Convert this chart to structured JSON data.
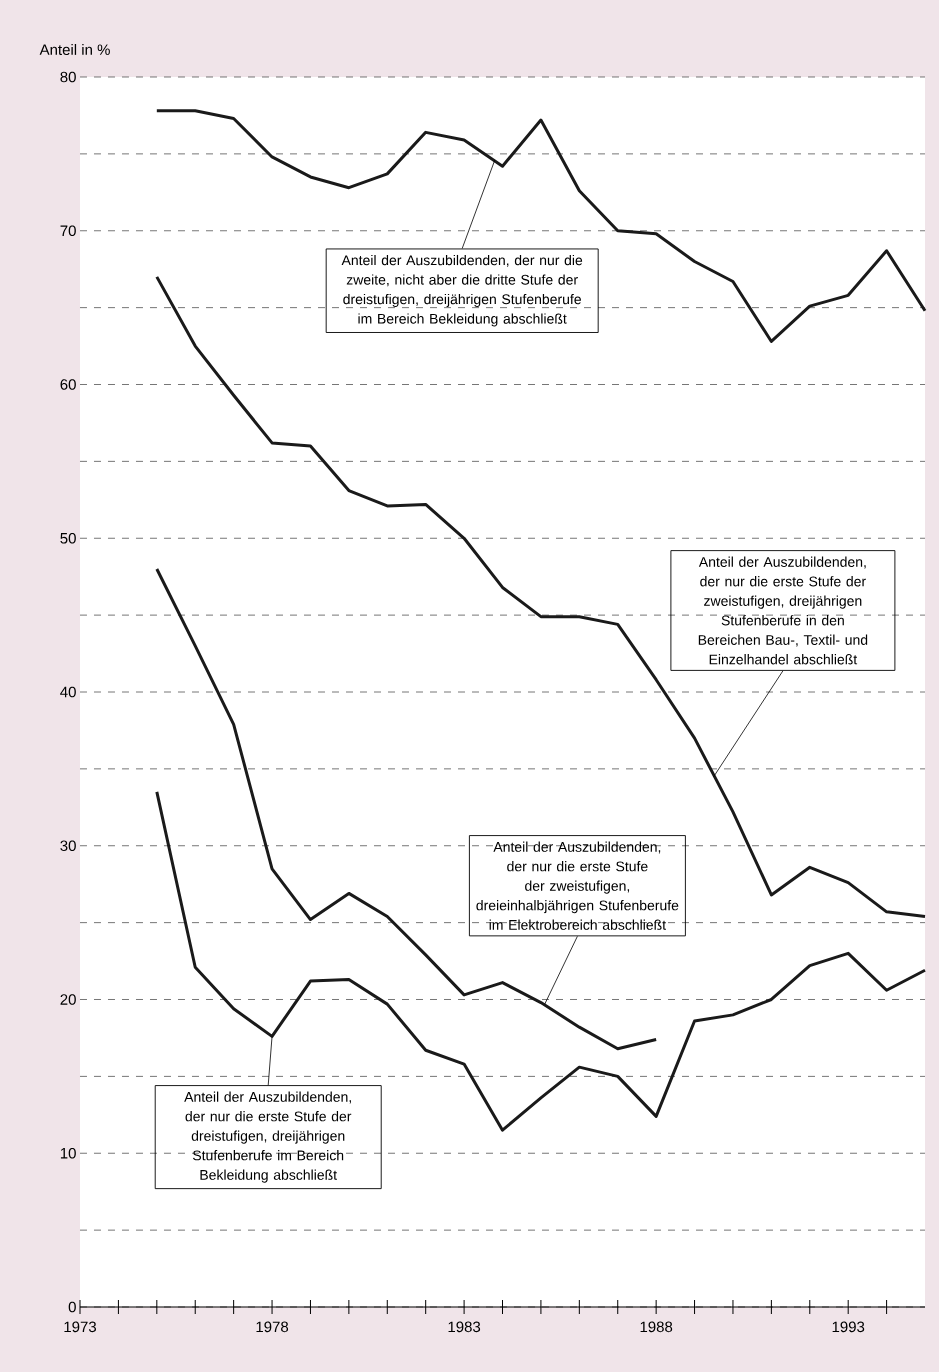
{
  "chart_data": {
    "type": "line",
    "ylabel": "Anteil in %",
    "xlim": [
      1973,
      1995
    ],
    "ylim": [
      0,
      80
    ],
    "xticks": [
      1973,
      {
        "value": 1974,
        "label": null
      },
      {
        "value": 1975,
        "label": null
      },
      {
        "value": 1976,
        "label": null
      },
      {
        "value": 1977,
        "label": null
      },
      1978,
      {
        "value": 1979,
        "label": null
      },
      {
        "value": 1980,
        "label": null
      },
      {
        "value": 1981,
        "label": null
      },
      {
        "value": 1982,
        "label": null
      },
      1983,
      {
        "value": 1984,
        "label": null
      },
      {
        "value": 1985,
        "label": null
      },
      {
        "value": 1986,
        "label": null
      },
      {
        "value": 1987,
        "label": null
      },
      1988,
      {
        "value": 1989,
        "label": null
      },
      {
        "value": 1990,
        "label": null
      },
      {
        "value": 1991,
        "label": null
      },
      {
        "value": 1992,
        "label": null
      },
      1993,
      {
        "value": 1994,
        "label": null
      }
    ],
    "yticks": [
      0,
      {
        "value": 5,
        "label": null
      },
      10,
      {
        "value": 15,
        "label": null
      },
      20,
      {
        "value": 25,
        "label": null
      },
      30,
      {
        "value": 35,
        "label": null
      },
      40,
      {
        "value": 45,
        "label": null
      },
      50,
      {
        "value": 55,
        "label": null
      },
      60,
      {
        "value": 65,
        "label": null
      },
      70,
      {
        "value": 75,
        "label": null
      },
      80
    ],
    "grid": "y",
    "line_style": "solid",
    "marker": "none",
    "series": [
      {
        "color": "#1a1a1a",
        "x": [
          1975,
          1976,
          1977,
          1978,
          1979,
          1980,
          1981,
          1982,
          1983,
          1984,
          1985,
          1986,
          1987,
          1988,
          1989,
          1990,
          1991,
          1992,
          1993,
          1994,
          1995
        ],
        "values": [
          77.8,
          77.8,
          77.3,
          74.8,
          73.5,
          72.8,
          73.7,
          76.4,
          75.9,
          74.2,
          77.2,
          72.6,
          70.0,
          69.8,
          68.0,
          66.7,
          62.8,
          65.1,
          65.8,
          68.7,
          64.8
        ]
      },
      {
        "color": "#1a1a1a",
        "x": [
          1975,
          1976,
          1977,
          1978,
          1979,
          1980,
          1981,
          1982,
          1983,
          1984,
          1985,
          1986,
          1987,
          1988,
          1989,
          1990,
          1991,
          1992,
          1993,
          1994,
          1995
        ],
        "values": [
          67.0,
          62.5,
          59.3,
          56.2,
          56.0,
          53.1,
          52.1,
          52.2,
          50.0,
          46.8,
          44.9,
          44.9,
          44.4,
          40.8,
          37.0,
          32.2,
          26.8,
          28.6,
          27.6,
          25.7,
          25.4
        ]
      },
      {
        "color": "#1a1a1a",
        "x": [
          1975,
          1976,
          1977,
          1978,
          1979,
          1980,
          1981,
          1982,
          1983,
          1984,
          1985,
          1986,
          1987,
          1988
        ],
        "values": [
          48.0,
          43.0,
          37.9,
          28.5,
          25.2,
          26.9,
          25.4,
          22.9,
          20.3,
          21.1,
          19.8,
          18.2,
          16.8,
          17.4
        ]
      },
      {
        "color": "#1a1a1a",
        "x": [
          1975,
          1976,
          1977,
          1978,
          1979,
          1980,
          1981,
          1982,
          1983,
          1984,
          1985,
          1986,
          1987,
          1988,
          1989,
          1990,
          1991,
          1992,
          1993,
          1994,
          1995
        ],
        "values": [
          33.5,
          22.1,
          19.4,
          17.6,
          21.2,
          21.3,
          19.7,
          16.7,
          15.8,
          11.5,
          13.6,
          15.6,
          15.0,
          12.4,
          18.6,
          19.0,
          20.0,
          22.2,
          23.0,
          20.6,
          21.9
        ]
      }
    ],
    "annotations": [
      {
        "text": "Anteil der Auszubildenden, der nur die zweite, nicht aber die dritte Stufe der dreistufigen, dreijährigen Stufenberufe im Bereich Bekleidung abschließt",
        "x": 1983.8,
        "y": 74.6
      },
      {
        "text": "Anteil der Auszubildenden, der nur die erste Stufe der zweistufigen, dreijährigen Stufenberufe in den Bereichen Bau-, Textil- und Einzelhandel abschließt",
        "x": 1989.5,
        "y": 34.5
      },
      {
        "text": "Anteil der Auszubildenden, der nur die erste Stufe der zweistufigen, dreieinhalbjährigen Stufenberufe im Elektrobereich abschließt",
        "x": 1985.1,
        "y": 19.7
      },
      {
        "text": "Anteil der Auszubildenden, der nur die erste Stufe der dreistufigen, dreijährigen Stufenberufe im Bereich Bekleidung abschließt",
        "x": 1978,
        "y": 17.6
      }
    ]
  }
}
